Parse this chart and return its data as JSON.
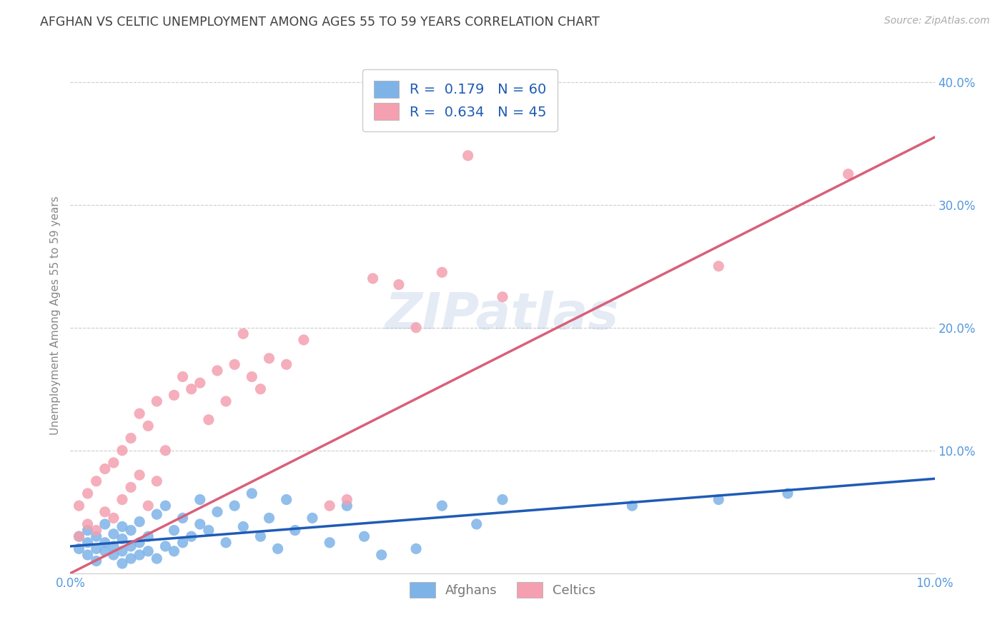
{
  "title": "AFGHAN VS CELTIC UNEMPLOYMENT AMONG AGES 55 TO 59 YEARS CORRELATION CHART",
  "source": "Source: ZipAtlas.com",
  "ylabel": "Unemployment Among Ages 55 to 59 years",
  "xlim": [
    0.0,
    0.1
  ],
  "ylim": [
    0.0,
    0.42
  ],
  "xtick_positions": [
    0.0,
    0.1
  ],
  "xtick_labels": [
    "0.0%",
    "10.0%"
  ],
  "ytick_positions": [
    0.0,
    0.1,
    0.2,
    0.3,
    0.4
  ],
  "ytick_labels": [
    "",
    "10.0%",
    "20.0%",
    "30.0%",
    "40.0%"
  ],
  "watermark": "ZIPatlas",
  "afghan_color": "#7EB3E8",
  "celtic_color": "#F4A0B0",
  "afghan_line_color": "#1F5BB5",
  "celtic_line_color": "#D9607A",
  "afghan_R": 0.179,
  "afghan_N": 60,
  "celtic_R": 0.634,
  "celtic_N": 45,
  "legend_labels": [
    "Afghans",
    "Celtics"
  ],
  "background_color": "#FFFFFF",
  "grid_color": "#CCCCCC",
  "title_color": "#404040",
  "axis_label_color": "#5599DD",
  "legend_text_color": "#1F5BB5",
  "tick_label_color": "#5599DD",
  "afghan_line_x": [
    0.0,
    0.1
  ],
  "afghan_line_y": [
    0.022,
    0.077
  ],
  "celtic_line_x": [
    0.0,
    0.1
  ],
  "celtic_line_y": [
    0.0,
    0.355
  ],
  "afghan_scatter_x": [
    0.001,
    0.001,
    0.002,
    0.002,
    0.002,
    0.003,
    0.003,
    0.003,
    0.004,
    0.004,
    0.004,
    0.005,
    0.005,
    0.005,
    0.006,
    0.006,
    0.006,
    0.006,
    0.007,
    0.007,
    0.007,
    0.008,
    0.008,
    0.008,
    0.009,
    0.009,
    0.01,
    0.01,
    0.011,
    0.011,
    0.012,
    0.012,
    0.013,
    0.013,
    0.014,
    0.015,
    0.015,
    0.016,
    0.017,
    0.018,
    0.019,
    0.02,
    0.021,
    0.022,
    0.023,
    0.024,
    0.025,
    0.026,
    0.028,
    0.03,
    0.032,
    0.034,
    0.036,
    0.04,
    0.043,
    0.047,
    0.05,
    0.065,
    0.075,
    0.083
  ],
  "afghan_scatter_y": [
    0.02,
    0.03,
    0.015,
    0.025,
    0.035,
    0.01,
    0.02,
    0.03,
    0.018,
    0.025,
    0.04,
    0.015,
    0.022,
    0.032,
    0.008,
    0.018,
    0.028,
    0.038,
    0.012,
    0.022,
    0.035,
    0.015,
    0.025,
    0.042,
    0.018,
    0.03,
    0.012,
    0.048,
    0.022,
    0.055,
    0.018,
    0.035,
    0.025,
    0.045,
    0.03,
    0.04,
    0.06,
    0.035,
    0.05,
    0.025,
    0.055,
    0.038,
    0.065,
    0.03,
    0.045,
    0.02,
    0.06,
    0.035,
    0.045,
    0.025,
    0.055,
    0.03,
    0.015,
    0.02,
    0.055,
    0.04,
    0.06,
    0.055,
    0.06,
    0.065
  ],
  "celtic_scatter_x": [
    0.001,
    0.001,
    0.002,
    0.002,
    0.003,
    0.003,
    0.004,
    0.004,
    0.005,
    0.005,
    0.006,
    0.006,
    0.007,
    0.007,
    0.008,
    0.008,
    0.009,
    0.009,
    0.01,
    0.01,
    0.011,
    0.012,
    0.013,
    0.014,
    0.015,
    0.016,
    0.017,
    0.018,
    0.019,
    0.02,
    0.021,
    0.022,
    0.023,
    0.025,
    0.027,
    0.03,
    0.032,
    0.035,
    0.038,
    0.04,
    0.043,
    0.046,
    0.05,
    0.075,
    0.09
  ],
  "celtic_scatter_y": [
    0.03,
    0.055,
    0.04,
    0.065,
    0.035,
    0.075,
    0.05,
    0.085,
    0.045,
    0.09,
    0.06,
    0.1,
    0.07,
    0.11,
    0.08,
    0.13,
    0.055,
    0.12,
    0.075,
    0.14,
    0.1,
    0.145,
    0.16,
    0.15,
    0.155,
    0.125,
    0.165,
    0.14,
    0.17,
    0.195,
    0.16,
    0.15,
    0.175,
    0.17,
    0.19,
    0.055,
    0.06,
    0.24,
    0.235,
    0.2,
    0.245,
    0.34,
    0.225,
    0.25,
    0.325
  ]
}
